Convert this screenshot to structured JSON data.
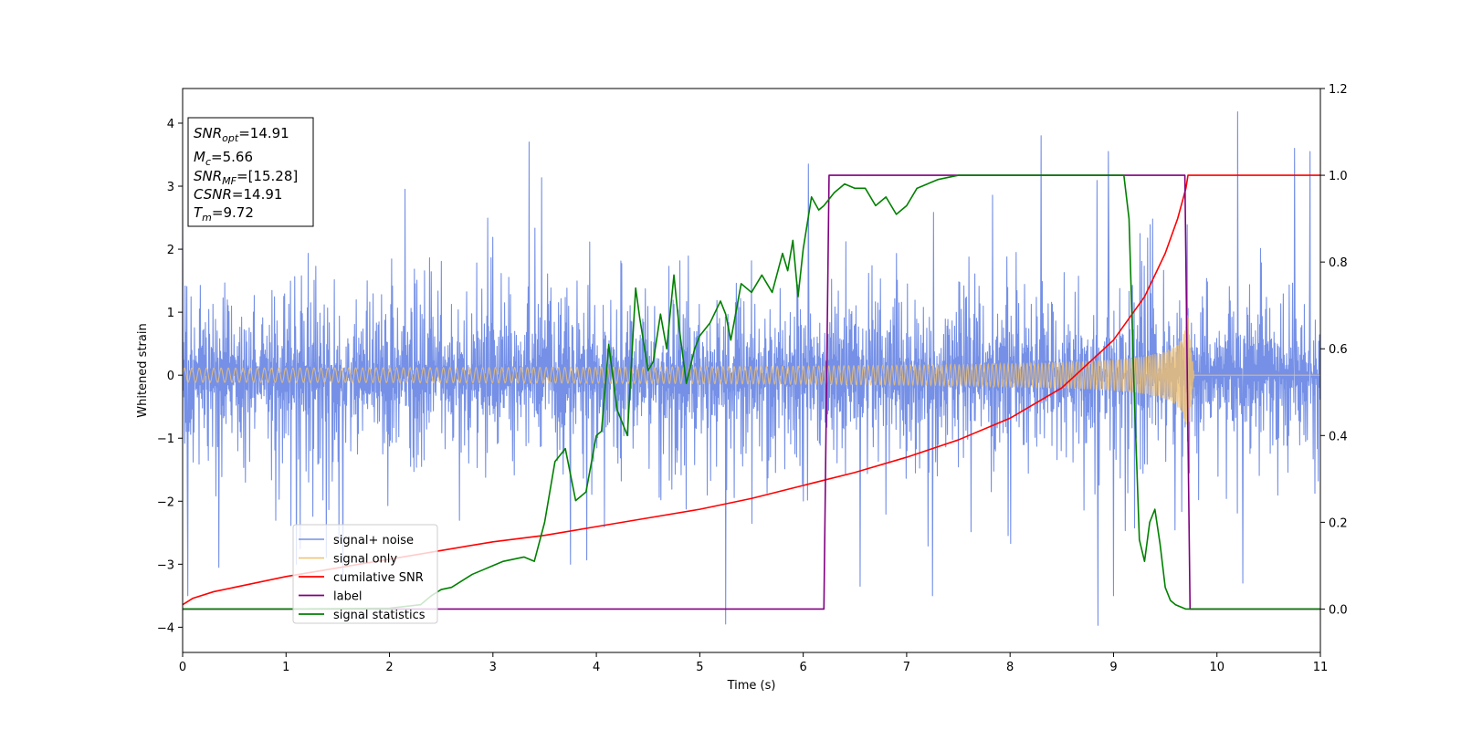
{
  "chart_data": {
    "type": "line",
    "xlabel": "Time (s)",
    "ylabel": "Whitened strain",
    "xlim": [
      0,
      11
    ],
    "ylim": [
      -4.4,
      4.55
    ],
    "y2lim": [
      -0.1,
      1.2
    ],
    "x_ticks": [
      0,
      1,
      2,
      3,
      4,
      5,
      6,
      7,
      8,
      9,
      10,
      11
    ],
    "y_ticks": [
      -4,
      -3,
      -2,
      -1,
      0,
      1,
      2,
      3,
      4
    ],
    "y2_ticks": [
      0.0,
      0.2,
      0.4,
      0.6,
      0.8,
      1.0,
      1.2
    ],
    "y2_tick_labels": [
      "0.0",
      "0.2",
      "0.4",
      "0.6",
      "0.8",
      "1.0",
      "1.2"
    ],
    "grid": false,
    "legend_position": "lower-left",
    "annotation": {
      "lines": [
        {
          "base": "SNR",
          "sub": "opt",
          "value": "=14.91"
        },
        {
          "base": "M",
          "sub": "c",
          "value": "=5.66"
        },
        {
          "base": "SNR",
          "sub": "MF",
          "value": "=[15.28]"
        },
        {
          "base": "CSNR",
          "sub": "",
          "value": "=14.91"
        },
        {
          "base": "T",
          "sub": "m",
          "value": "=9.72"
        }
      ]
    },
    "series": [
      {
        "name": "signal+ noise",
        "axis": "left",
        "color": "#7590e6",
        "kind": "noise",
        "sigma": 0.85,
        "clip": 2.6,
        "extremes": [
          [
            0.05,
            -3.5
          ],
          [
            0.35,
            -3.05
          ],
          [
            1.1,
            -3.0
          ],
          [
            1.55,
            -3.2
          ],
          [
            2.15,
            2.95
          ],
          [
            3.35,
            3.7
          ],
          [
            3.75,
            -3.0
          ],
          [
            5.25,
            -3.95
          ],
          [
            6.05,
            3.35
          ],
          [
            6.55,
            -3.35
          ],
          [
            7.25,
            -3.5
          ],
          [
            8.3,
            3.8
          ],
          [
            8.85,
            -3.97
          ],
          [
            8.95,
            3.55
          ],
          [
            9.0,
            -3.5
          ],
          [
            10.2,
            4.18
          ],
          [
            10.25,
            -3.3
          ],
          [
            10.75,
            3.6
          ],
          [
            10.9,
            3.55
          ]
        ]
      },
      {
        "name": "signal only",
        "axis": "left",
        "color": "#f0c070",
        "kind": "chirp",
        "amp_start": 0.06,
        "amp_end": 1.0,
        "t_merge": 9.72,
        "ringdown_end": 9.78
      },
      {
        "name": "cumilative SNR",
        "axis": "right",
        "color": "#ff0000",
        "x": [
          0.0,
          0.1,
          0.3,
          0.6,
          1.0,
          1.5,
          2.0,
          2.5,
          3.0,
          3.5,
          4.0,
          4.5,
          5.0,
          5.5,
          6.0,
          6.5,
          7.0,
          7.5,
          8.0,
          8.5,
          9.0,
          9.3,
          9.5,
          9.62,
          9.7,
          9.72,
          11.0
        ],
        "y": [
          0.01,
          0.025,
          0.04,
          0.055,
          0.075,
          0.095,
          0.115,
          0.135,
          0.155,
          0.17,
          0.19,
          0.21,
          0.23,
          0.255,
          0.285,
          0.315,
          0.35,
          0.39,
          0.44,
          0.51,
          0.62,
          0.72,
          0.82,
          0.9,
          0.97,
          1.0,
          1.0
        ]
      },
      {
        "name": "label",
        "axis": "right",
        "color": "#800080",
        "x": [
          0.0,
          6.2,
          6.25,
          9.69,
          9.74,
          11.0
        ],
        "y": [
          0.0,
          0.0,
          1.0,
          1.0,
          0.0,
          0.0
        ]
      },
      {
        "name": "signal statistics",
        "axis": "right",
        "color": "#008000",
        "x": [
          0.0,
          1.0,
          2.0,
          2.3,
          2.4,
          2.5,
          2.6,
          2.7,
          2.8,
          2.9,
          3.0,
          3.1,
          3.2,
          3.3,
          3.4,
          3.5,
          3.6,
          3.7,
          3.8,
          3.9,
          4.0,
          4.05,
          4.12,
          4.2,
          4.3,
          4.38,
          4.42,
          4.5,
          4.55,
          4.62,
          4.68,
          4.75,
          4.8,
          4.87,
          4.95,
          5.0,
          5.1,
          5.2,
          5.25,
          5.3,
          5.4,
          5.5,
          5.6,
          5.7,
          5.8,
          5.85,
          5.9,
          5.95,
          6.0,
          6.08,
          6.15,
          6.2,
          6.3,
          6.4,
          6.5,
          6.6,
          6.7,
          6.8,
          6.9,
          7.0,
          7.1,
          7.2,
          7.3,
          7.5,
          7.7,
          7.9,
          8.0,
          8.2,
          8.4,
          8.6,
          8.8,
          9.0,
          9.1,
          9.15,
          9.2,
          9.25,
          9.3,
          9.35,
          9.4,
          9.45,
          9.5,
          9.55,
          9.6,
          9.65,
          9.7,
          9.8,
          11.0
        ],
        "y": [
          0.0,
          0.0,
          0.002,
          0.01,
          0.03,
          0.045,
          0.05,
          0.065,
          0.08,
          0.09,
          0.1,
          0.11,
          0.115,
          0.12,
          0.11,
          0.2,
          0.34,
          0.37,
          0.25,
          0.27,
          0.4,
          0.41,
          0.61,
          0.46,
          0.4,
          0.74,
          0.67,
          0.55,
          0.57,
          0.68,
          0.6,
          0.77,
          0.65,
          0.52,
          0.6,
          0.63,
          0.66,
          0.71,
          0.68,
          0.62,
          0.75,
          0.73,
          0.77,
          0.73,
          0.82,
          0.78,
          0.85,
          0.72,
          0.83,
          0.95,
          0.92,
          0.93,
          0.96,
          0.98,
          0.97,
          0.97,
          0.93,
          0.95,
          0.91,
          0.93,
          0.97,
          0.98,
          0.99,
          1.0,
          1.0,
          1.0,
          1.0,
          1.0,
          1.0,
          1.0,
          1.0,
          1.0,
          1.0,
          0.9,
          0.5,
          0.16,
          0.11,
          0.2,
          0.23,
          0.15,
          0.05,
          0.02,
          0.01,
          0.005,
          0.0,
          0.0,
          0.0
        ]
      }
    ]
  }
}
